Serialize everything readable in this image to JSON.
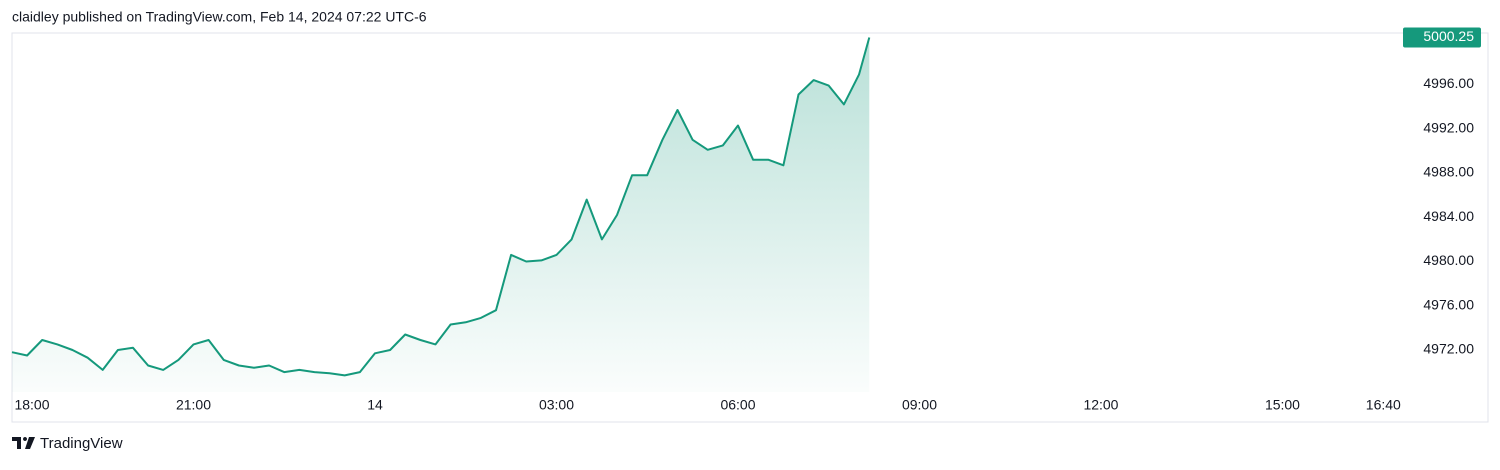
{
  "header": "claidley published on TradingView.com, Feb 14, 2024 07:22 UTC-6",
  "footer": "TradingView",
  "chart_data": {
    "type": "area",
    "x": [
      18,
      18.25,
      18.5,
      18.75,
      19,
      19.25,
      19.5,
      19.75,
      20,
      20.25,
      20.5,
      20.75,
      21,
      21.25,
      21.5,
      21.75,
      22,
      22.25,
      22.5,
      22.75,
      23,
      23.25,
      23.5,
      23.75,
      24,
      24.25,
      24.5,
      24.75,
      25,
      25.25,
      25.5,
      25.75,
      26,
      26.25,
      26.5,
      26.75,
      27,
      27.25,
      27.5,
      27.75,
      28,
      28.25,
      28.5,
      28.75,
      29,
      29.25,
      29.5,
      29.75,
      30,
      30.25,
      30.5,
      30.75,
      31,
      31.25,
      31.5,
      31.75,
      32,
      32.17
    ],
    "series": [
      {
        "color": "#15997c",
        "values": [
          4971.8,
          4971.5,
          4972.9,
          4972.5,
          4972.0,
          4971.3,
          4970.2,
          4972.0,
          4972.2,
          4970.6,
          4970.2,
          4971.1,
          4972.5,
          4972.9,
          4971.1,
          4970.6,
          4970.4,
          4970.6,
          4970.0,
          4970.2,
          4970.0,
          4969.9,
          4969.7,
          4970.0,
          4971.7,
          4972.0,
          4973.4,
          4972.9,
          4972.5,
          4974.3,
          4974.5,
          4974.9,
          4975.6,
          4980.6,
          4980.0,
          4980.1,
          4980.6,
          4982.0,
          4985.6,
          4982.0,
          4984.2,
          4987.8,
          4987.8,
          4991.0,
          4993.7,
          4991.0,
          4990.1,
          4990.5,
          4992.3,
          4989.2,
          4989.2,
          4988.7,
          4995.1,
          4996.4,
          4995.9,
          4994.2,
          4996.9,
          5000.25
        ]
      }
    ],
    "xlim": [
      18,
      40.86
    ],
    "xticks": [
      {
        "value": 18,
        "label": "18:00"
      },
      {
        "value": 21,
        "label": "21:00"
      },
      {
        "value": 24,
        "label": "14"
      },
      {
        "value": 27,
        "label": "03:00"
      },
      {
        "value": 30,
        "label": "06:00"
      },
      {
        "value": 33,
        "label": "09:00"
      },
      {
        "value": 36,
        "label": "12:00"
      },
      {
        "value": 39,
        "label": "15:00"
      },
      {
        "value": 40.667,
        "label": "16:40"
      }
    ],
    "ylim": [
      4968.2,
      5000.66
    ],
    "yticks": [
      {
        "value": 4972,
        "label": "4972.00"
      },
      {
        "value": 4976,
        "label": "4976.00"
      },
      {
        "value": 4980,
        "label": "4980.00"
      },
      {
        "value": 4984,
        "label": "4984.00"
      },
      {
        "value": 4988,
        "label": "4988.00"
      },
      {
        "value": 4992,
        "label": "4992.00"
      },
      {
        "value": 4996,
        "label": "4996.00"
      }
    ]
  }
}
